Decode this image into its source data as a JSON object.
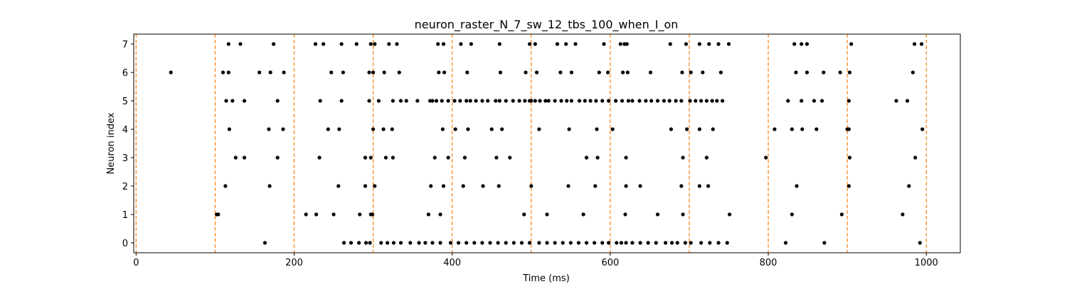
{
  "chart_data": {
    "type": "scatter",
    "title": "neuron_raster_N_7_sw_12_tbs_100_when_I_on",
    "xlabel": "Time (ms)",
    "ylabel": "Neuron index",
    "xlim": [
      -3,
      1043
    ],
    "ylim": [
      -0.35,
      7.35
    ],
    "xticks": [
      0,
      200,
      400,
      600,
      800,
      1000
    ],
    "yticks": [
      0,
      1,
      2,
      3,
      4,
      5,
      6,
      7
    ],
    "grid": false,
    "colors": {
      "spike": "#000000",
      "marker_line": "#ff7f0e",
      "axis": "#000000"
    },
    "vertical_markers": [
      0,
      100,
      200,
      300,
      400,
      500,
      600,
      700,
      800,
      900,
      1000
    ],
    "series": [
      {
        "neuron": 0,
        "x": [
          163,
          263,
          272,
          282,
          291,
          296,
          310,
          318,
          326,
          335,
          347,
          358,
          366,
          375,
          385,
          398,
          408,
          418,
          428,
          438,
          448,
          458,
          468,
          478,
          488,
          498,
          510,
          520,
          530,
          540,
          550,
          560,
          570,
          580,
          590,
          598,
          608,
          614,
          620,
          628,
          638,
          648,
          658,
          670,
          678,
          685,
          695,
          702,
          715,
          726,
          737,
          748,
          822,
          871,
          992
        ]
      },
      {
        "neuron": 1,
        "x": [
          102,
          104,
          215,
          228,
          250,
          283,
          297,
          299,
          370,
          385,
          491,
          520,
          566,
          619,
          660,
          692,
          751,
          830,
          893,
          970
        ]
      },
      {
        "neuron": 2,
        "x": [
          113,
          169,
          256,
          290,
          302,
          373,
          389,
          414,
          439,
          459,
          500,
          547,
          581,
          620,
          638,
          690,
          713,
          724,
          836,
          902,
          978
        ]
      },
      {
        "neuron": 3,
        "x": [
          126,
          137,
          179,
          232,
          290,
          297,
          316,
          325,
          378,
          395,
          416,
          456,
          473,
          570,
          584,
          620,
          692,
          722,
          797,
          903,
          986
        ]
      },
      {
        "neuron": 4,
        "x": [
          118,
          168,
          186,
          243,
          257,
          300,
          313,
          324,
          388,
          404,
          420,
          450,
          463,
          510,
          548,
          583,
          603,
          677,
          697,
          713,
          730,
          808,
          830,
          843,
          861,
          900,
          902,
          995
        ]
      },
      {
        "neuron": 5,
        "x": [
          114,
          122,
          137,
          179,
          233,
          260,
          295,
          307,
          325,
          335,
          342,
          356,
          372,
          375,
          380,
          387,
          395,
          403,
          410,
          418,
          423,
          430,
          438,
          445,
          455,
          460,
          468,
          477,
          485,
          492,
          498,
          500,
          505,
          511,
          518,
          522,
          530,
          538,
          545,
          551,
          561,
          568,
          575,
          582,
          590,
          598,
          607,
          615,
          623,
          628,
          637,
          645,
          652,
          660,
          668,
          675,
          683,
          690,
          701,
          708,
          715,
          722,
          729,
          735,
          742,
          825,
          842,
          858,
          868,
          902,
          962,
          976
        ]
      },
      {
        "neuron": 6,
        "x": [
          44,
          110,
          117,
          156,
          170,
          187,
          247,
          262,
          295,
          300,
          314,
          333,
          383,
          390,
          419,
          461,
          493,
          507,
          537,
          551,
          586,
          597,
          616,
          622,
          651,
          691,
          702,
          717,
          740,
          835,
          849,
          870,
          891,
          903,
          983
        ]
      },
      {
        "neuron": 7,
        "x": [
          117,
          132,
          174,
          227,
          237,
          260,
          279,
          297,
          302,
          320,
          330,
          382,
          389,
          411,
          424,
          460,
          498,
          505,
          533,
          544,
          556,
          592,
          613,
          618,
          621,
          676,
          696,
          713,
          725,
          737,
          750,
          833,
          842,
          849,
          905,
          985,
          994
        ]
      }
    ]
  }
}
